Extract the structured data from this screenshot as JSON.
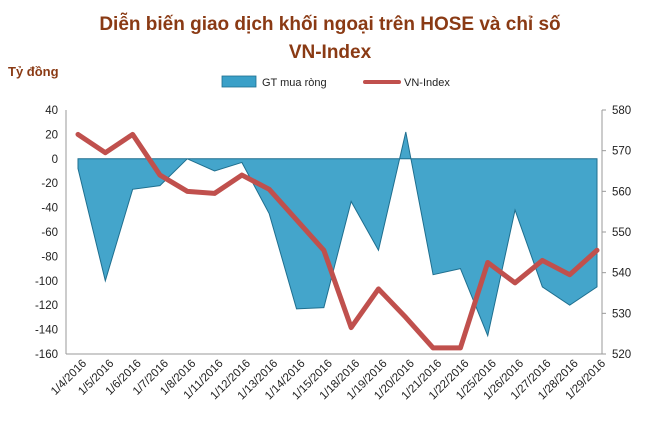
{
  "chart_data": {
    "type": "area+line",
    "title_lines": [
      "Diễn biến giao dịch khối ngoại trên HOSE và chỉ số",
      "VN-Index"
    ],
    "left_axis_label": "Tỷ đồng",
    "categories": [
      "1/4/2016",
      "1/5/2016",
      "1/6/2016",
      "1/7/2016",
      "1/8/2016",
      "1/11/2016",
      "1/12/2016",
      "1/13/2016",
      "1/14/2016",
      "1/15/2016",
      "1/18/2016",
      "1/19/2016",
      "1/20/2016",
      "1/21/2016",
      "1/22/2016",
      "1/25/2016",
      "1/26/2016",
      "1/27/2016",
      "1/28/2016",
      "1/29/2016"
    ],
    "series": [
      {
        "name": "GT mua ròng",
        "type": "area",
        "axis": "left",
        "color": "#3aa0c8",
        "values": [
          -8,
          -100,
          -25,
          -22,
          0,
          -10,
          -3,
          -45,
          -123,
          -122,
          -35,
          -75,
          22,
          -95,
          -90,
          -145,
          -42,
          -105,
          -120,
          -105
        ]
      },
      {
        "name": "VN-Index",
        "type": "line",
        "axis": "right",
        "color": "#c0504d",
        "values": [
          574,
          569.5,
          574,
          564,
          560,
          559.5,
          564,
          560.5,
          553,
          545.5,
          526.5,
          536,
          529,
          521.5,
          521.5,
          542.5,
          537.5,
          543,
          539.5,
          545.5
        ]
      }
    ],
    "left_axis": {
      "min": -160,
      "max": 40,
      "step": 20,
      "ticks": [
        "40",
        "20",
        "0",
        "-20",
        "-40",
        "-60",
        "-80",
        "-100",
        "-120",
        "-140",
        "-160"
      ]
    },
    "right_axis": {
      "min": 520,
      "max": 580,
      "step": 10,
      "ticks": [
        "580",
        "570",
        "560",
        "550",
        "540",
        "530",
        "520"
      ]
    },
    "legend_position": "top-center",
    "grid": false
  }
}
